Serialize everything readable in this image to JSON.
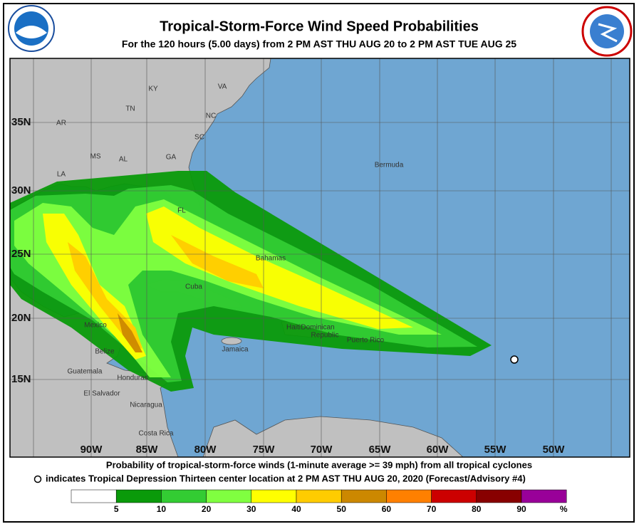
{
  "header": {
    "title": "Tropical-Storm-Force Wind Speed Probabilities",
    "subtitle": "For the 120 hours (5.00 days) from 2 PM AST THU AUG 20 to 2 PM AST TUE AUG 25"
  },
  "map": {
    "lon_labels": [
      "90W",
      "85W",
      "80W",
      "75W",
      "70W",
      "65W",
      "60W",
      "55W",
      "50W"
    ],
    "lat_labels": [
      "35N",
      "30N",
      "25N",
      "20N",
      "15N"
    ],
    "places": [
      "KY",
      "VA",
      "TN",
      "NC",
      "AR",
      "SC",
      "MS",
      "AL",
      "GA",
      "LA",
      "FL",
      "Bermuda",
      "Bahamas",
      "Cuba",
      "Mexico",
      "Haiti",
      "Dominican",
      "Republic",
      "Jamaica",
      "Puerto Rico",
      "Belize",
      "Guatemala",
      "Honduras",
      "El Salvador",
      "Nicaragua",
      "Costa Rica"
    ]
  },
  "footer": {
    "line1": "Probability of tropical-storm-force winds (1-minute average >= 39 mph) from all tropical cyclones",
    "line2": "indicates Tropical Depression Thirteen center location at 2 PM AST THU AUG 20, 2020 (Forecast/Advisory #4)"
  },
  "legend": {
    "colors": [
      "#ffffff",
      "#0a9a0a",
      "#33cc33",
      "#80ff40",
      "#ffff00",
      "#ffcc00",
      "#cc8800",
      "#ff8000",
      "#cc0000",
      "#880000",
      "#990099"
    ],
    "ticks": [
      5,
      10,
      20,
      30,
      40,
      50,
      60,
      70,
      80,
      90
    ],
    "unit": "%"
  }
}
